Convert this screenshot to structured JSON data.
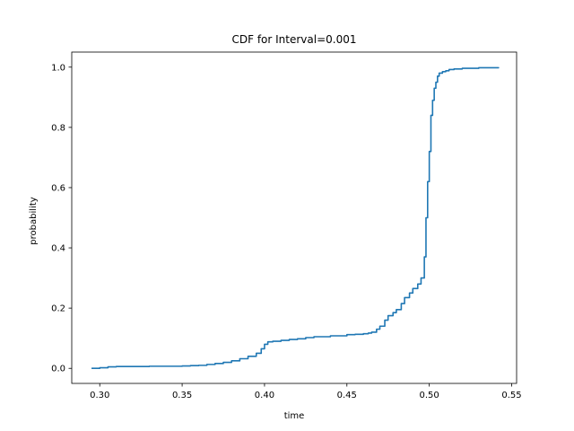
{
  "chart_data": {
    "type": "line",
    "title": "CDF for Interval=0.001",
    "xlabel": "time",
    "ylabel": "probability",
    "xlim": [
      0.283,
      0.553
    ],
    "ylim": [
      -0.05,
      1.05
    ],
    "xticks": [
      0.3,
      0.35,
      0.4,
      0.45,
      0.5,
      0.55
    ],
    "xtick_labels": [
      "0.30",
      "0.35",
      "0.40",
      "0.45",
      "0.50",
      "0.55"
    ],
    "yticks": [
      0.0,
      0.2,
      0.4,
      0.6,
      0.8,
      1.0
    ],
    "ytick_labels": [
      "0.0",
      "0.2",
      "0.4",
      "0.6",
      "0.8",
      "1.0"
    ],
    "grid": false,
    "series": [
      {
        "color": "#1f77b4",
        "step": true,
        "x": [
          0.295,
          0.3,
          0.305,
          0.31,
          0.32,
          0.33,
          0.34,
          0.35,
          0.355,
          0.36,
          0.365,
          0.37,
          0.375,
          0.38,
          0.385,
          0.39,
          0.395,
          0.398,
          0.4,
          0.402,
          0.405,
          0.41,
          0.415,
          0.42,
          0.425,
          0.43,
          0.44,
          0.45,
          0.455,
          0.46,
          0.463,
          0.465,
          0.468,
          0.47,
          0.473,
          0.475,
          0.478,
          0.48,
          0.483,
          0.485,
          0.488,
          0.49,
          0.493,
          0.495,
          0.497,
          0.498,
          0.499,
          0.5,
          0.501,
          0.502,
          0.503,
          0.504,
          0.505,
          0.506,
          0.508,
          0.51,
          0.512,
          0.515,
          0.52,
          0.53,
          0.542
        ],
        "y": [
          0.0,
          0.002,
          0.005,
          0.006,
          0.006,
          0.007,
          0.007,
          0.008,
          0.009,
          0.01,
          0.013,
          0.016,
          0.02,
          0.025,
          0.032,
          0.04,
          0.05,
          0.065,
          0.08,
          0.088,
          0.09,
          0.093,
          0.096,
          0.098,
          0.102,
          0.105,
          0.108,
          0.112,
          0.113,
          0.115,
          0.117,
          0.12,
          0.13,
          0.14,
          0.16,
          0.175,
          0.185,
          0.195,
          0.215,
          0.235,
          0.25,
          0.265,
          0.28,
          0.3,
          0.37,
          0.5,
          0.62,
          0.72,
          0.84,
          0.89,
          0.93,
          0.95,
          0.97,
          0.98,
          0.985,
          0.988,
          0.992,
          0.994,
          0.996,
          0.998,
          1.0
        ]
      }
    ]
  }
}
